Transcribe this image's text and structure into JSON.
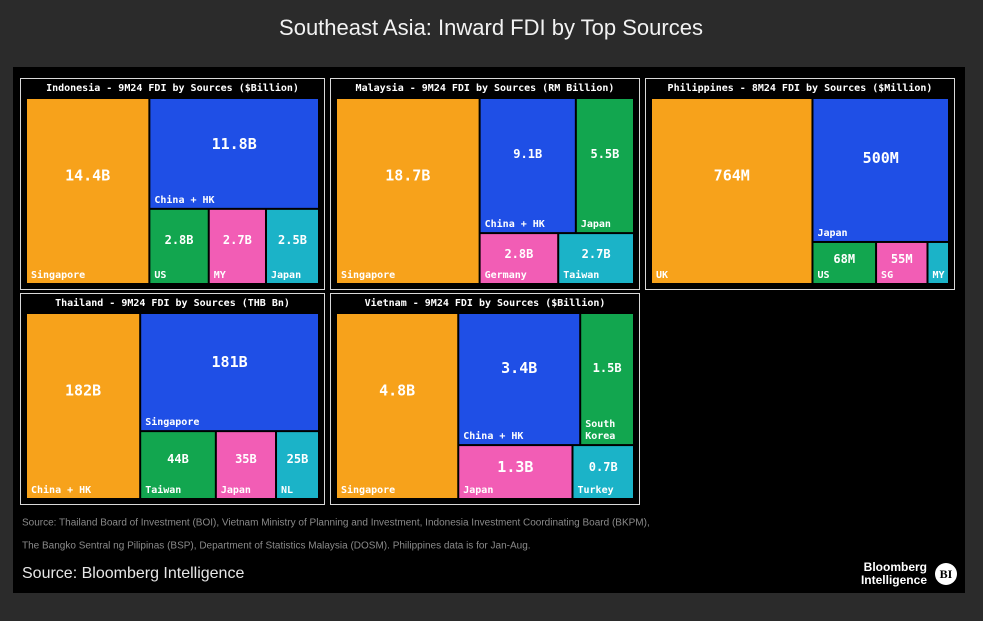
{
  "title": "Southeast Asia: Inward FDI by Top Sources",
  "chart_data": [
    {
      "type": "treemap",
      "title": "Indonesia - 9M24 FDI by Sources ($Billion)",
      "categories": [
        "Singapore",
        "China + HK",
        "US",
        "MY",
        "Japan"
      ],
      "values": [
        14.4,
        11.8,
        2.8,
        2.7,
        2.5
      ],
      "value_labels": [
        "14.4B",
        "11.8B",
        "2.8B",
        "2.7B",
        "2.5B"
      ],
      "colors": [
        "#f7a21b",
        "#1f4fe6",
        "#12a64f",
        "#f25db5",
        "#1bb3c8"
      ]
    },
    {
      "type": "treemap",
      "title": "Malaysia - 9M24 FDI by Sources (RM Billion)",
      "categories": [
        "Singapore",
        "China + HK",
        "Japan",
        "Germany",
        "Taiwan"
      ],
      "values": [
        18.7,
        9.1,
        5.5,
        2.8,
        2.7
      ],
      "value_labels": [
        "18.7B",
        "9.1B",
        "5.5B",
        "2.8B",
        "2.7B"
      ],
      "colors": [
        "#f7a21b",
        "#1f4fe6",
        "#12a64f",
        "#f25db5",
        "#1bb3c8"
      ]
    },
    {
      "type": "treemap",
      "title": "Philippines - 8M24 FDI by Sources ($Million)",
      "categories": [
        "UK",
        "Japan",
        "US",
        "SG",
        "MY"
      ],
      "values": [
        764,
        500,
        68,
        55,
        23
      ],
      "value_labels": [
        "764M",
        "500M",
        "68M",
        "55M",
        null
      ],
      "colors": [
        "#f7a21b",
        "#1f4fe6",
        "#12a64f",
        "#f25db5",
        "#1bb3c8"
      ]
    },
    {
      "type": "treemap",
      "title": "Thailand - 9M24 FDI by Sources (THB Bn)",
      "categories": [
        "China + HK",
        "Singapore",
        "Taiwan",
        "Japan",
        "NL"
      ],
      "values": [
        182,
        181,
        44,
        35,
        25
      ],
      "value_labels": [
        "182B",
        "181B",
        "44B",
        "35B",
        "25B"
      ],
      "colors": [
        "#f7a21b",
        "#1f4fe6",
        "#12a64f",
        "#f25db5",
        "#1bb3c8"
      ]
    },
    {
      "type": "treemap",
      "title": "Vietnam - 9M24 FDI by Sources ($Billion)",
      "categories": [
        "Singapore",
        "China + HK",
        "South Korea",
        "Japan",
        "Turkey"
      ],
      "values": [
        4.8,
        3.4,
        1.5,
        1.3,
        0.7
      ],
      "value_labels": [
        "4.8B",
        "3.4B",
        "1.5B",
        "1.3B",
        "0.7B"
      ],
      "colors": [
        "#f7a21b",
        "#1f4fe6",
        "#12a64f",
        "#f25db5",
        "#1bb3c8"
      ]
    }
  ],
  "notes": [
    "Source: Thailand Board of Investment (BOI), Vietnam Ministry of Planning and Investment, Indonesia Investment Coordinating Board (BKPM),",
    "The Bangko Sentral ng Pilipinas (BSP), Department of Statistics Malaysia (DOSM). Philippines data is for Jan-Aug."
  ],
  "source": "Source: Bloomberg Intelligence",
  "logo": {
    "line1": "Bloomberg",
    "line2": "Intelligence",
    "badge": "BI"
  }
}
